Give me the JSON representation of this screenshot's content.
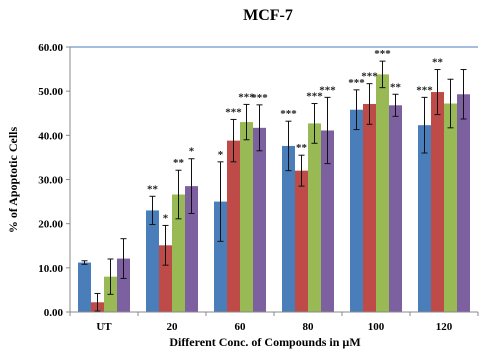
{
  "chart_data": {
    "type": "bar",
    "title": "MCF-7",
    "xlabel": "Different Conc. of Compounds in µM",
    "ylabel": "% of Apoptotic Cells",
    "ylim": [
      0,
      60
    ],
    "yticks": [
      "0.00",
      "10.00",
      "20.00",
      "30.00",
      "40.00",
      "50.00",
      "60.00"
    ],
    "categories": [
      "UT",
      "20",
      "60",
      "80",
      "100",
      "120"
    ],
    "grid": "none",
    "legend": "none",
    "series": [
      {
        "color": "#4a7ebb",
        "values": [
          11.2,
          23.0,
          25.0,
          37.6,
          45.8,
          42.3
        ],
        "errors": [
          0.4,
          3.2,
          9.0,
          5.6,
          4.5,
          6.3
        ],
        "sig": [
          "",
          "**",
          "*",
          "***",
          "***",
          "***"
        ]
      },
      {
        "color": "#be4b48",
        "values": [
          2.2,
          15.1,
          38.8,
          32.0,
          47.1,
          49.8
        ],
        "errors": [
          2.0,
          4.5,
          4.8,
          3.5,
          4.6,
          5.1
        ],
        "sig": [
          "",
          "*",
          "***",
          "**",
          "***",
          "**"
        ]
      },
      {
        "color": "#98b954",
        "values": [
          8.0,
          26.6,
          43.0,
          42.7,
          53.8,
          47.2
        ],
        "errors": [
          4.0,
          5.5,
          4.0,
          4.5,
          3.0,
          5.5
        ],
        "sig": [
          "",
          "**",
          "***",
          "***",
          "***",
          ""
        ]
      },
      {
        "color": "#7d60a0",
        "values": [
          12.1,
          28.5,
          41.7,
          41.1,
          46.8,
          49.3
        ],
        "errors": [
          4.5,
          6.2,
          5.2,
          7.5,
          2.5,
          5.6
        ],
        "sig": [
          "",
          "*",
          "***",
          "***",
          "**",
          ""
        ]
      }
    ]
  }
}
